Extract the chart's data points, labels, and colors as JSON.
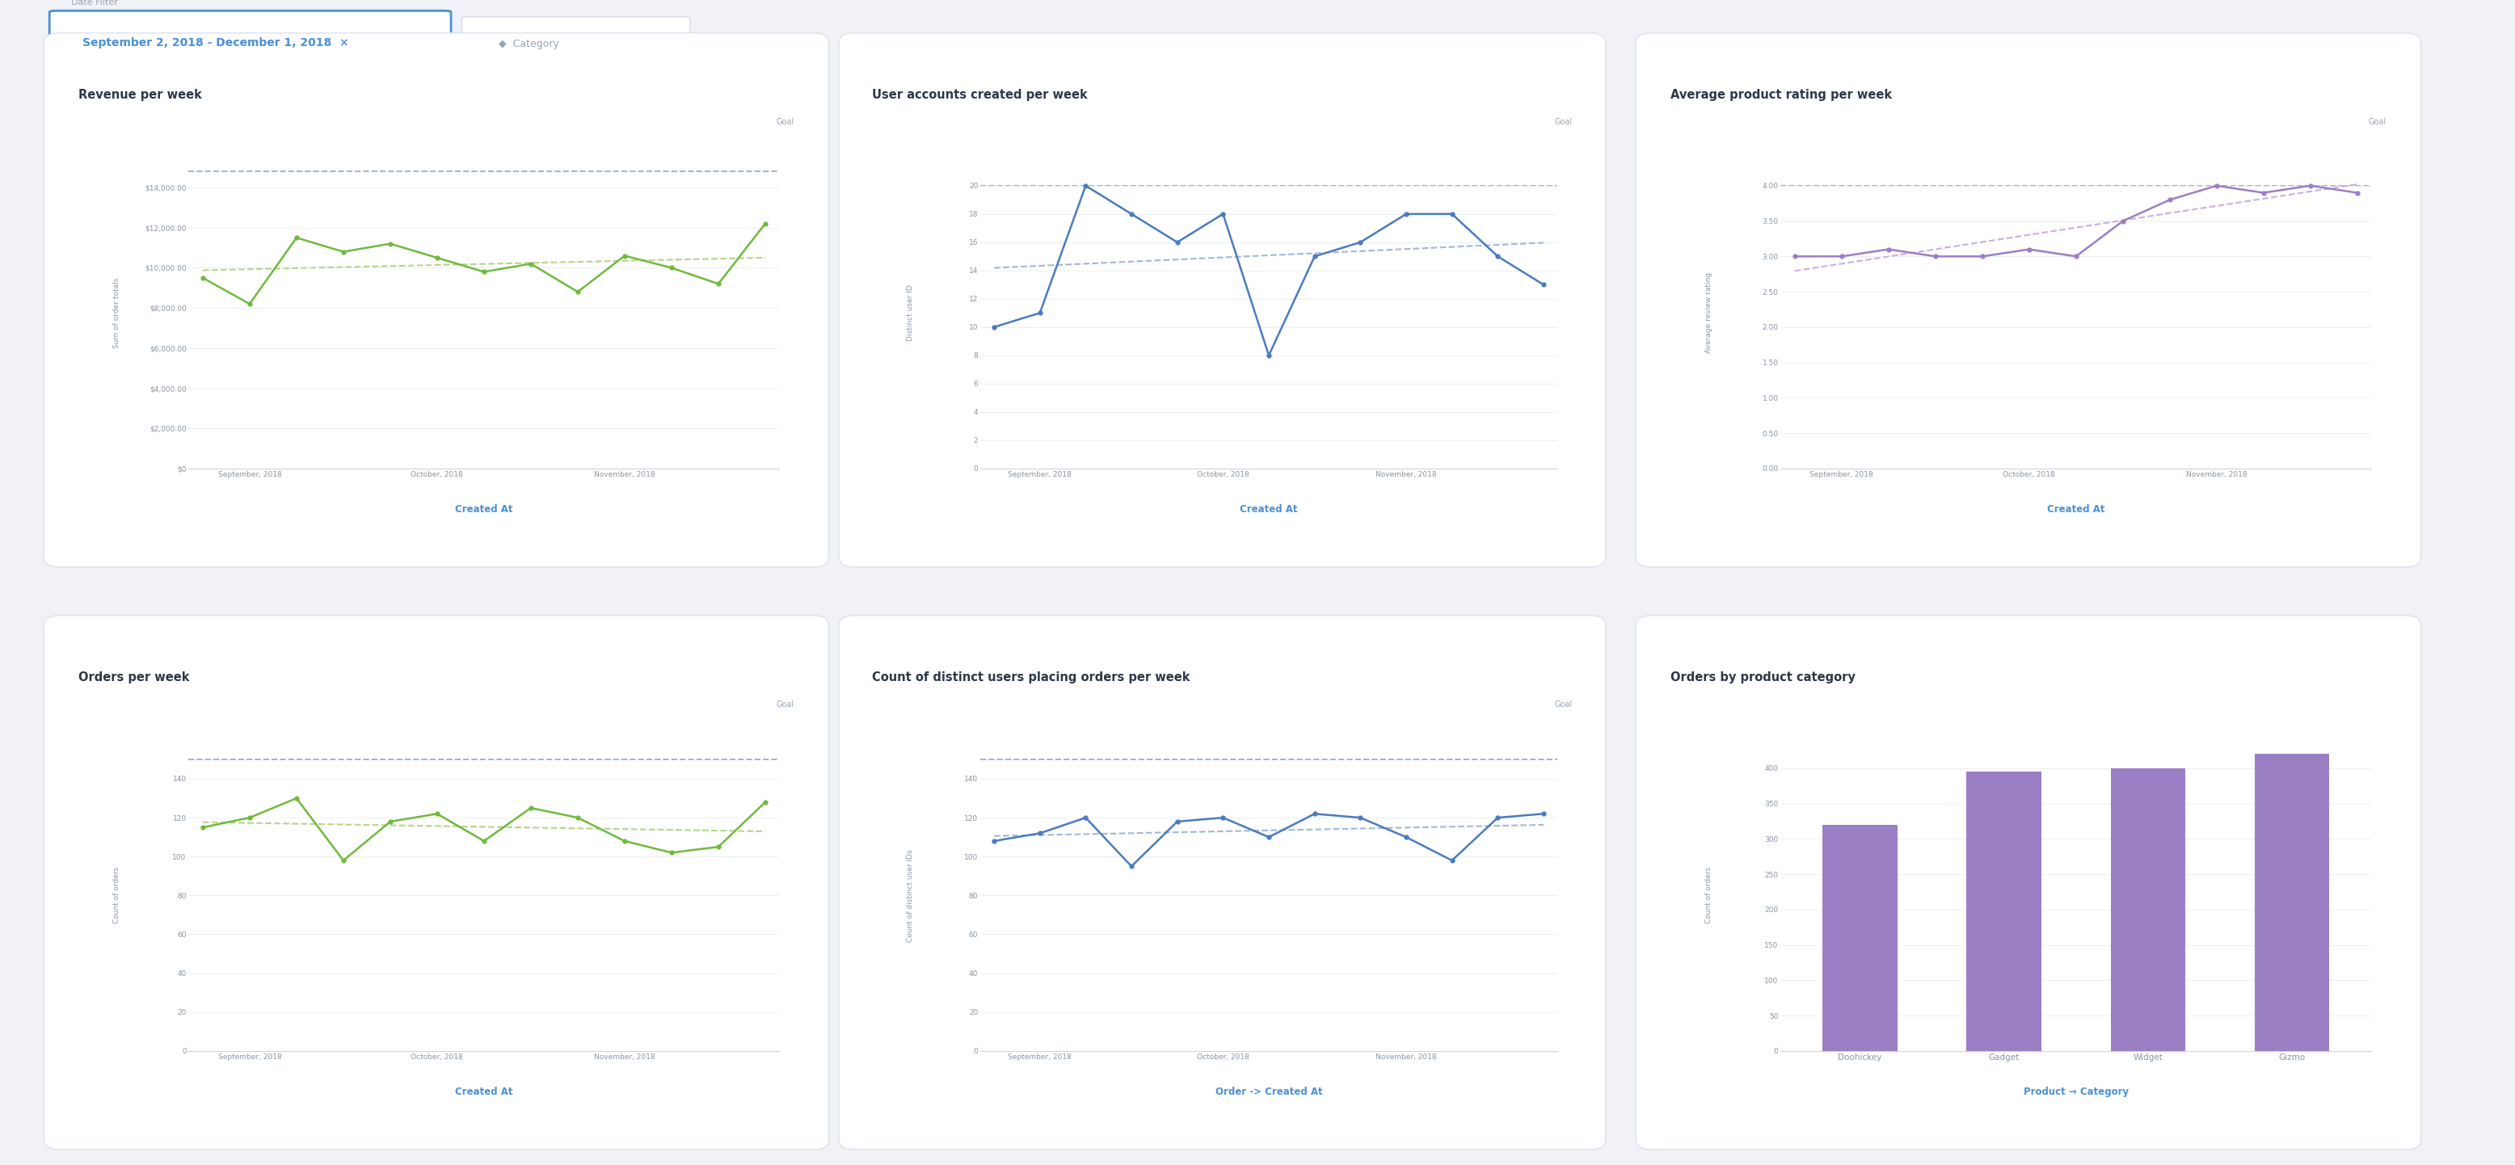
{
  "bg_color": "#f0f2f5",
  "chart1": {
    "title": "Revenue per week",
    "xlabel": "Created At",
    "ylabel": "Sum of order totals",
    "goal_label": "Goal",
    "goal_value": 14800,
    "ytick_vals": [
      0,
      2000,
      4000,
      6000,
      8000,
      10000,
      12000,
      14000
    ],
    "ytick_labels": [
      "$0",
      "$2,000.00",
      "$4,000.00",
      "$6,000.00",
      "$8,000.00",
      "$10,000.00",
      "$12,000.00",
      "$14,000.00"
    ],
    "xtick_labels": [
      "September, 2018",
      "October, 2018",
      "November, 2018"
    ],
    "xtick_positions": [
      1,
      5,
      9
    ],
    "data_x": [
      0,
      1,
      2,
      3,
      4,
      5,
      6,
      7,
      8,
      9,
      10,
      11,
      12
    ],
    "data_y": [
      9500,
      8200,
      11500,
      10800,
      11200,
      10500,
      9800,
      10200,
      8800,
      10600,
      10000,
      9200,
      12200
    ],
    "line_color": "#6fba3e",
    "trend_color": "#b8d48a",
    "goal_color": "#a0b4cc",
    "ylim": [
      0,
      15500
    ]
  },
  "chart2": {
    "title": "User accounts created per week",
    "xlabel": "Created At",
    "ylabel": "Distinct user ID",
    "goal_label": "Goal",
    "goal_value": 20,
    "ytick_vals": [
      0,
      2,
      4,
      6,
      8,
      10,
      12,
      14,
      16,
      18,
      20
    ],
    "ytick_labels": [
      "0",
      "2",
      "4",
      "6",
      "8",
      "10",
      "12",
      "14",
      "16",
      "18",
      "20"
    ],
    "xtick_labels": [
      "September, 2018",
      "October, 2018",
      "November, 2018"
    ],
    "xtick_positions": [
      1,
      5,
      9
    ],
    "data_x": [
      0,
      1,
      2,
      3,
      4,
      5,
      6,
      7,
      8,
      9,
      10,
      11,
      12
    ],
    "data_y": [
      10,
      11,
      20,
      18,
      16,
      18,
      8,
      15,
      16,
      18,
      18,
      15,
      13
    ],
    "line_color": "#4b7bbf",
    "trend_color": "#a0b8d8",
    "goal_color": "#a0b4cc",
    "ylim": [
      0,
      22
    ]
  },
  "chart3": {
    "title": "Average product rating per week",
    "xlabel": "Created At",
    "ylabel": "Average review rating",
    "goal_label": "Goal",
    "goal_value": 4.0,
    "ytick_vals": [
      0.0,
      0.5,
      1.0,
      1.5,
      2.0,
      2.5,
      3.0,
      3.5,
      4.0
    ],
    "ytick_labels": [
      "0.00",
      "0.50",
      "1.00",
      "1.50",
      "2.00",
      "2.50",
      "3.00",
      "3.50",
      "4.00"
    ],
    "xtick_labels": [
      "September, 2018",
      "October, 2018",
      "November, 2018"
    ],
    "xtick_positions": [
      1,
      5,
      9
    ],
    "data_x": [
      0,
      1,
      2,
      3,
      4,
      5,
      6,
      7,
      8,
      9,
      10,
      11,
      12
    ],
    "data_y": [
      3.0,
      3.0,
      3.1,
      3.0,
      3.0,
      3.1,
      3.0,
      3.5,
      3.8,
      4.0,
      3.9,
      4.0,
      3.9
    ],
    "line_color": "#9b7fc4",
    "trend_color": "#c8aee8",
    "goal_color": "#a0b4cc",
    "ylim": [
      0,
      4.4
    ]
  },
  "chart4": {
    "title": "Orders per week",
    "xlabel": "Created At",
    "ylabel": "Count of orders",
    "goal_label": "Goal",
    "goal_value": 150,
    "ytick_vals": [
      0,
      20,
      40,
      60,
      80,
      100,
      120,
      140
    ],
    "ytick_labels": [
      "0",
      "20",
      "40",
      "60",
      "80",
      "100",
      "120",
      "140"
    ],
    "xtick_labels": [
      "September, 2018",
      "October, 2018",
      "November, 2018"
    ],
    "xtick_positions": [
      1,
      5,
      9
    ],
    "data_x": [
      0,
      1,
      2,
      3,
      4,
      5,
      6,
      7,
      8,
      9,
      10,
      11,
      12
    ],
    "data_y": [
      115,
      120,
      130,
      98,
      118,
      122,
      108,
      125,
      120,
      108,
      102,
      105,
      128
    ],
    "line_color": "#6fba3e",
    "trend_color": "#b8d48a",
    "goal_color": "#a0b4cc",
    "ylim": [
      0,
      160
    ]
  },
  "chart5": {
    "title": "Count of distinct users placing orders per week",
    "xlabel": "Order -> Created At",
    "ylabel": "Count of distinct user IDs",
    "goal_label": "Goal",
    "goal_value": 150,
    "ytick_vals": [
      0,
      20,
      40,
      60,
      80,
      100,
      120,
      140
    ],
    "ytick_labels": [
      "0",
      "20",
      "40",
      "60",
      "80",
      "100",
      "120",
      "140"
    ],
    "xtick_labels": [
      "September, 2018",
      "October, 2018",
      "November, 2018"
    ],
    "xtick_positions": [
      1,
      5,
      9
    ],
    "data_x": [
      0,
      1,
      2,
      3,
      4,
      5,
      6,
      7,
      8,
      9,
      10,
      11,
      12
    ],
    "data_y": [
      108,
      112,
      120,
      95,
      118,
      120,
      110,
      122,
      120,
      110,
      98,
      120,
      122
    ],
    "line_color": "#4b7bbf",
    "trend_color": "#a0b8d8",
    "goal_color": "#a0b4cc",
    "ylim": [
      0,
      160
    ]
  },
  "chart6": {
    "title": "Orders by product category",
    "xlabel": "Product → Category",
    "ylabel": "Count of orders",
    "categories": [
      "Doohickey",
      "Gadget",
      "Widget",
      "Gizmo"
    ],
    "values": [
      320,
      395,
      400,
      420
    ],
    "bar_color": "#9b7fc4",
    "ytick_vals": [
      0,
      50,
      100,
      150,
      200,
      250,
      300,
      350,
      400
    ],
    "ytick_labels": [
      "0",
      "50",
      "100",
      "150",
      "200",
      "250",
      "300",
      "350",
      "400"
    ],
    "ylim": [
      0,
      440
    ]
  }
}
